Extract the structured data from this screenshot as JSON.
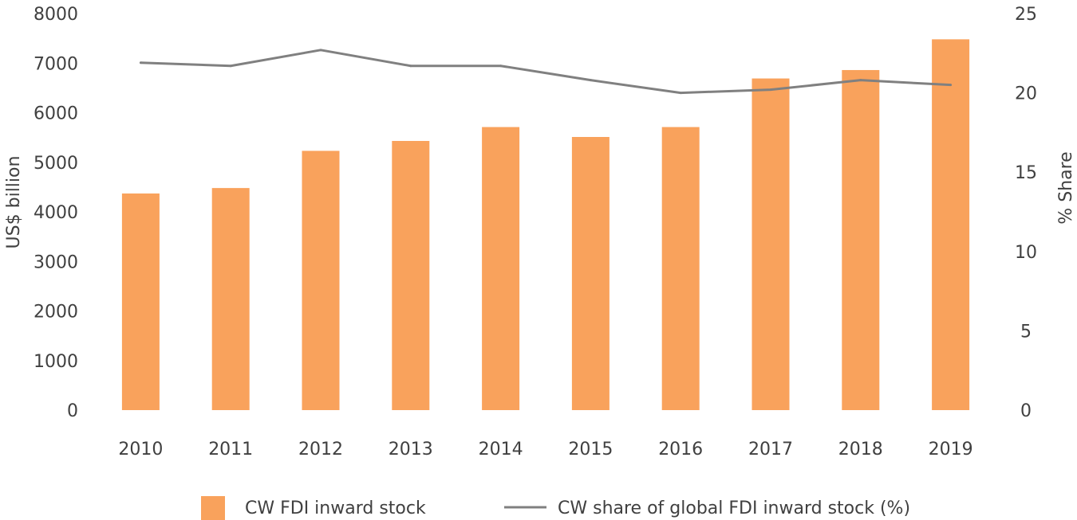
{
  "chart_data": {
    "type": "bar",
    "categories": [
      "2010",
      "2011",
      "2012",
      "2013",
      "2014",
      "2015",
      "2016",
      "2017",
      "2018",
      "2019"
    ],
    "series": [
      {
        "name": "CW FDI inward stock",
        "type": "bar",
        "axis": "left",
        "color": "#F9A25C",
        "values": [
          4370,
          4480,
          5230,
          5430,
          5710,
          5510,
          5710,
          6690,
          6860,
          7480
        ]
      },
      {
        "name": "CW share of global FDI inward stock (%)",
        "type": "line",
        "axis": "right",
        "color": "#808080",
        "values": [
          21.9,
          21.7,
          22.7,
          21.7,
          21.7,
          20.8,
          20.0,
          20.2,
          20.8,
          20.5
        ]
      }
    ],
    "ylabel": "US$ billion",
    "ylim": [
      0,
      8000
    ],
    "yticks": [
      "0",
      "1000",
      "2000",
      "3000",
      "4000",
      "5000",
      "6000",
      "7000",
      "8000"
    ],
    "y2label": "% Share",
    "y2lim": [
      0,
      25
    ],
    "y2ticks": [
      "0",
      "5",
      "10",
      "15",
      "20",
      "25"
    ],
    "grid": false,
    "legend_position": "bottom"
  }
}
